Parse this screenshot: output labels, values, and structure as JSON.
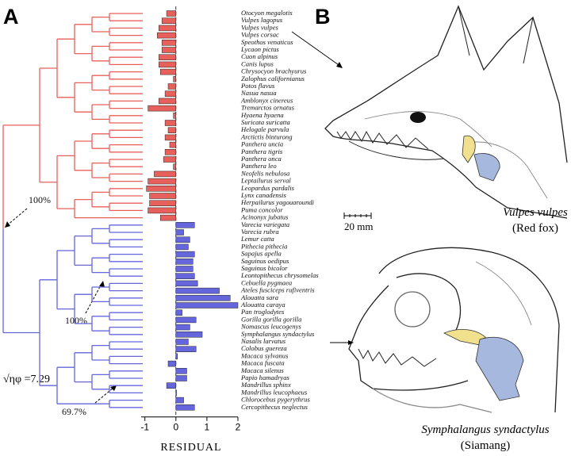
{
  "chart_data": {
    "type": "bar",
    "orientation": "horizontal",
    "panel_labels": [
      "A",
      "B"
    ],
    "xlabel": "RESIDUAL",
    "annotations": [
      "100%",
      "100%",
      "69.7%",
      "√ηφ =7.29",
      "Vulpes vulpes",
      "(Red fox)",
      "20 mm",
      "Symphalangus syndactylus",
      "(Siamang)"
    ],
    "categories": [
      "Otocyon megalotis",
      "Vulpes lagopus",
      "Vulpes vulpes",
      "Vulpes corsac",
      "Speothos venaticus",
      "Lycaon pictus",
      "Cuon alpinus",
      "Canis lupus",
      "Chrysocyon brachyurus",
      "Zalophus californianus",
      "Potos flavus",
      "Nasua nasua",
      "Amblonyx cinereus",
      "Tremarctos ornatus",
      "Hyaena hyaena",
      "Suricata suricatta",
      "Helogale parvula",
      "Arctictis binturong",
      "Panthera uncia",
      "Panthera tigris",
      "Panthera onca",
      "Panthera leo",
      "Neofelis nebulosa",
      "Leptailurus serval",
      "Leopardus pardalis",
      "Lynx canadensis",
      "Herpailurus yagouaroundi",
      "Puma concolor",
      "Acinonyx jubatus",
      "Varecia variegata",
      "Varecia rubra",
      "Lemur catta",
      "Pithecia pithecia",
      "Sapajus apella",
      "Saguinus oedipus",
      "Saguinus bicolor",
      "Leontopithecus chrysomelas",
      "Cebuella pygmaea",
      "Ateles fusciceps rufiventris",
      "Alouatta sara",
      "Alouatta caraya",
      "Pan troglodytes",
      "Gorilla gorilla gorilla",
      "Nomascus leucogenys",
      "Symphalangus syndactylus",
      "Nasalis larvatus",
      "Colobus guereza",
      "Macaca sylvanus",
      "Macaca fuscata",
      "Macaca silenus",
      "Papio hamadryas",
      "Mandrillus sphinx",
      "Mandrillus leucophaeus",
      "Chlorocebus pygerythrus",
      "Cercopithecus neglectus"
    ],
    "series": [
      {
        "color": "#e8605c",
        "values": [
          -0.3,
          -0.45,
          -0.55,
          -0.6,
          -0.45,
          -0.45,
          -0.55,
          -0.55,
          -0.5,
          -0.08,
          -0.25,
          -0.35,
          -0.55,
          -0.9,
          -0.08,
          -0.35,
          -0.25,
          -0.35,
          -0.2,
          -0.35,
          -0.4,
          -0.08,
          -0.7,
          -0.9,
          -0.95,
          -0.85,
          -0.85,
          -0.9,
          -0.5,
          null,
          null,
          null,
          null,
          null,
          null,
          null,
          null,
          null,
          null,
          null,
          null,
          null,
          null,
          null,
          null,
          null,
          null,
          null,
          null,
          null,
          null,
          null,
          null,
          null,
          null
        ]
      },
      {
        "color": "#6566dc",
        "values": [
          null,
          null,
          null,
          null,
          null,
          null,
          null,
          null,
          null,
          null,
          null,
          null,
          null,
          null,
          null,
          null,
          null,
          null,
          null,
          null,
          null,
          null,
          null,
          null,
          null,
          null,
          null,
          null,
          null,
          0.6,
          0.25,
          0.45,
          0.4,
          0.6,
          0.55,
          0.55,
          0.6,
          0.7,
          1.4,
          1.75,
          2.0,
          0.2,
          0.65,
          0.45,
          0.85,
          0.4,
          0.65,
          0.05,
          -0.25,
          0.35,
          0.35,
          -0.3,
          0.02,
          0.25,
          0.6
        ]
      }
    ],
    "xlim": [
      -1.12,
      2
    ],
    "xticks": [
      -1,
      0,
      1,
      2
    ]
  }
}
